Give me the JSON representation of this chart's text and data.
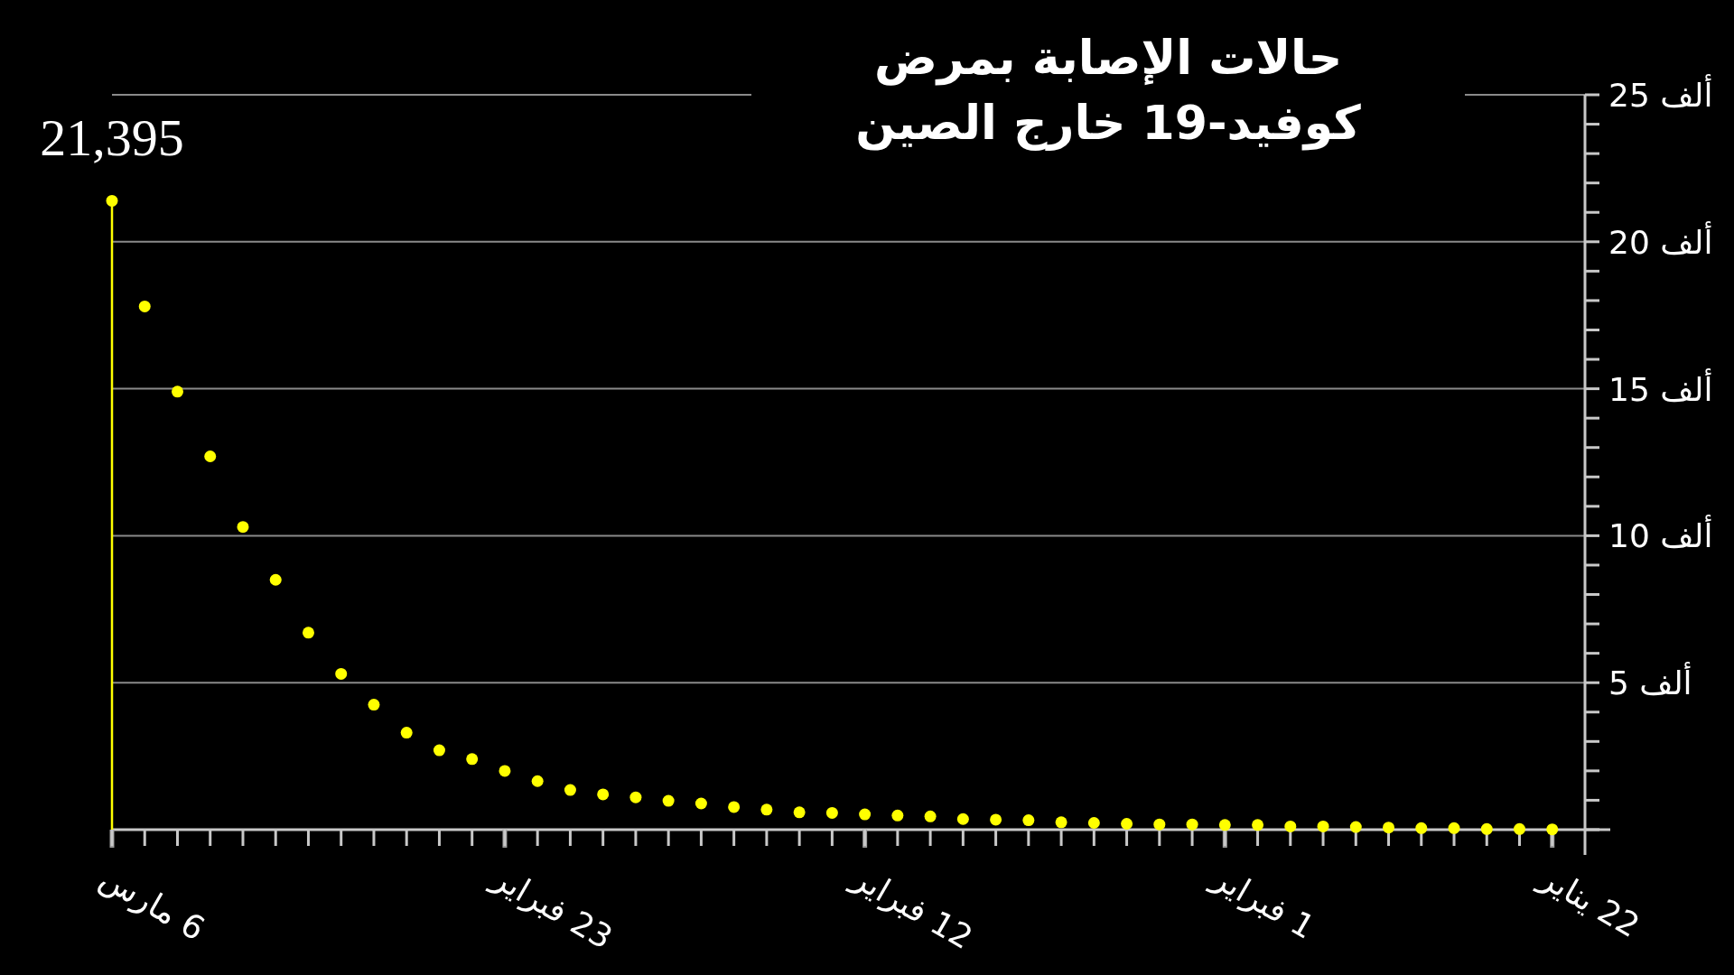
{
  "chart_data": {
    "type": "scatter",
    "title": "حالات الإصابة بمرض كوفيد-19 خارج الصين",
    "x": [
      "--03-06",
      "--03-05",
      "--03-04",
      "--03-03",
      "--03-02",
      "--03-01",
      "--02-29",
      "--02-28",
      "--02-27",
      "--02-26",
      "--02-25",
      "--02-24",
      "--02-23",
      "--02-22",
      "--02-21",
      "--02-20",
      "--02-19",
      "--02-18",
      "--02-17",
      "--02-16",
      "--02-15",
      "--02-14",
      "--02-13",
      "--02-12",
      "--02-11",
      "--02-10",
      "--02-09",
      "--02-08",
      "--02-07",
      "--02-06",
      "--02-05",
      "--02-04",
      "--02-03",
      "--02-02",
      "--02-01",
      "--01-31",
      "--01-30",
      "--01-29",
      "--01-28",
      "--01-27",
      "--01-26",
      "--01-25",
      "--01-24",
      "--01-23",
      "--01-22"
    ],
    "series": [
      {
        "color": "#ffff00",
        "values": [
          21.395,
          17.8,
          14.9,
          12.7,
          10.3,
          8.5,
          6.7,
          5.3,
          4.25,
          3.3,
          2.7,
          2.4,
          2.0,
          1.65,
          1.35,
          1.2,
          1.1,
          0.98,
          0.89,
          0.77,
          0.68,
          0.59,
          0.57,
          0.52,
          0.48,
          0.45,
          0.36,
          0.34,
          0.32,
          0.25,
          0.23,
          0.2,
          0.18,
          0.18,
          0.16,
          0.16,
          0.11,
          0.11,
          0.09,
          0.07,
          0.05,
          0.05,
          0.02,
          0.02,
          0.01
        ]
      }
    ],
    "marker": "circle",
    "xlim": [
      "--03-06",
      "--01-21"
    ],
    "xticks": [
      {
        "value": "--03-06",
        "label": "6 مارس"
      },
      {
        "value": "--02-23",
        "label": "23 فبراير"
      },
      {
        "value": "--02-12",
        "label": "12 فبراير"
      },
      {
        "value": "--02-01",
        "label": "1 فبراير"
      },
      {
        "value": "--01-22",
        "label": "22 يناير"
      }
    ],
    "ylim": [
      0,
      25
    ],
    "yticks": [
      {
        "value": 0,
        "label": null
      },
      {
        "value": 1,
        "label": null
      },
      {
        "value": 2,
        "label": null
      },
      {
        "value": 3,
        "label": null
      },
      {
        "value": 4,
        "label": null
      },
      {
        "value": 5,
        "label": "5 ألف"
      },
      {
        "value": 6,
        "label": null
      },
      {
        "value": 7,
        "label": null
      },
      {
        "value": 8,
        "label": null
      },
      {
        "value": 9,
        "label": null
      },
      {
        "value": 10,
        "label": "10 ألف"
      },
      {
        "value": 11,
        "label": null
      },
      {
        "value": 12,
        "label": null
      },
      {
        "value": 13,
        "label": null
      },
      {
        "value": 14,
        "label": null
      },
      {
        "value": 15,
        "label": "15 ألف"
      },
      {
        "value": 16,
        "label": null
      },
      {
        "value": 17,
        "label": null
      },
      {
        "value": 18,
        "label": null
      },
      {
        "value": 19,
        "label": null
      },
      {
        "value": 20,
        "label": "20 ألف"
      },
      {
        "value": 21,
        "label": null
      },
      {
        "value": 22,
        "label": null
      },
      {
        "value": 23,
        "label": null
      },
      {
        "value": 24,
        "label": null
      },
      {
        "value": 25,
        "label": "25 ألف"
      }
    ],
    "grid": "y",
    "ref_lines": [
      {
        "axis": "x",
        "value": "--03-06",
        "color": "#ffff00"
      }
    ],
    "annotations": [
      {
        "text": "21,395",
        "x": "--03-06",
        "y": 21.395
      }
    ]
  }
}
